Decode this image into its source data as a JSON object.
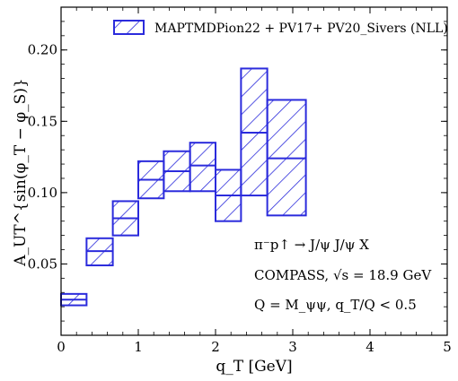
{
  "chart_data": {
    "type": "bar",
    "subtype": "hatched-band-step",
    "xlabel": "q_T [GeV]",
    "ylabel": "A_UT^{sin(φ_T − φ_S)}",
    "xlim": [
      0,
      5
    ],
    "ylim": [
      0,
      0.23
    ],
    "x_ticks": [
      "0",
      "1",
      "2",
      "3",
      "4",
      "5"
    ],
    "y_ticks": [
      "0.05",
      "0.10",
      "0.15",
      "0.20"
    ],
    "x_tick_values": [
      0,
      1,
      2,
      3,
      4,
      5
    ],
    "y_tick_values": [
      0.05,
      0.1,
      0.15,
      0.2
    ],
    "grid": false,
    "legend_position": "top-right",
    "series": [
      {
        "name": "MAPTMDPion22 + PV17+ PV20_Sivers (NLL)",
        "color": "#2b2bdc",
        "bins": [
          {
            "x0": 0.0,
            "x1": 0.33,
            "central": 0.025,
            "low": 0.021,
            "high": 0.029
          },
          {
            "x0": 0.33,
            "x1": 0.67,
            "central": 0.059,
            "low": 0.049,
            "high": 0.068
          },
          {
            "x0": 0.67,
            "x1": 1.0,
            "central": 0.082,
            "low": 0.07,
            "high": 0.094
          },
          {
            "x0": 1.0,
            "x1": 1.33,
            "central": 0.109,
            "low": 0.096,
            "high": 0.122
          },
          {
            "x0": 1.33,
            "x1": 1.67,
            "central": 0.115,
            "low": 0.101,
            "high": 0.129
          },
          {
            "x0": 1.67,
            "x1": 2.0,
            "central": 0.119,
            "low": 0.101,
            "high": 0.135
          },
          {
            "x0": 2.0,
            "x1": 2.33,
            "central": 0.098,
            "low": 0.08,
            "high": 0.116
          },
          {
            "x0": 2.33,
            "x1": 2.67,
            "central": 0.142,
            "low": 0.098,
            "high": 0.187
          },
          {
            "x0": 2.67,
            "x1": 3.17,
            "central": 0.124,
            "low": 0.084,
            "high": 0.165
          }
        ]
      }
    ]
  },
  "annotations": {
    "process": "π⁻p↑ → J/ψ J/ψ X",
    "experiment": "COMPASS, √s = 18.9 GeV",
    "cuts": "Q = M_ψψ, q_T/Q < 0.5"
  }
}
